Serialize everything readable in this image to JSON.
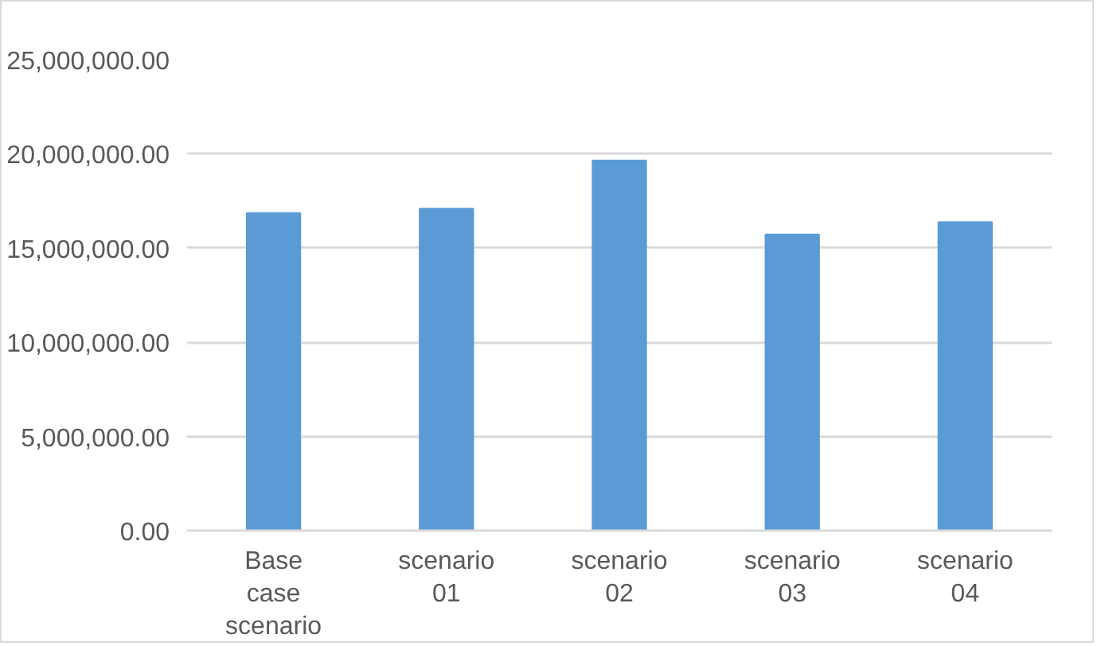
{
  "chart_data": {
    "type": "bar",
    "categories": [
      "Base case scenario",
      "scenario 01",
      "scenario 02",
      "scenario 03",
      "scenario 04"
    ],
    "values": [
      16860000,
      17090000,
      19650000,
      15720000,
      16370000
    ],
    "color": "#5b9bd5",
    "ylim": [
      0,
      25000000
    ],
    "yticks": [
      {
        "value": 0,
        "label": "0.00"
      },
      {
        "value": 5000000,
        "label": "5,000,000.00"
      },
      {
        "value": 10000000,
        "label": "10,000,000.00"
      },
      {
        "value": 15000000,
        "label": "15,000,000.00"
      },
      {
        "value": 20000000,
        "label": "20,000,000.00"
      },
      {
        "value": 25000000,
        "label": "25,000,000.00"
      }
    ],
    "grid": "y"
  }
}
